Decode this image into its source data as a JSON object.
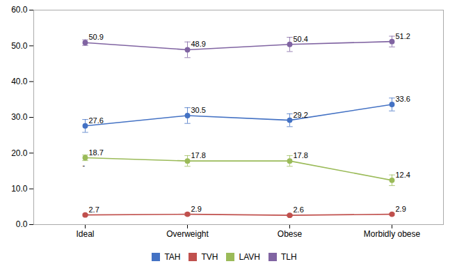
{
  "chart_data": {
    "type": "line",
    "categories": [
      "Ideal",
      "Overweight",
      "Obese",
      "Morbidly obese"
    ],
    "series": [
      {
        "name": "TAH",
        "color": "#4472C4",
        "values": [
          27.6,
          30.5,
          29.2,
          33.6
        ],
        "errors": [
          1.8,
          2.2,
          1.8,
          1.8
        ]
      },
      {
        "name": "TVH",
        "color": "#C0504D",
        "values": [
          2.7,
          2.9,
          2.6,
          2.9
        ],
        "errors": [
          0.25,
          0.35,
          0.25,
          0.25
        ]
      },
      {
        "name": "LAVH",
        "color": "#9BBB59",
        "values": [
          18.7,
          17.8,
          17.8,
          12.4
        ],
        "errors": [
          0.8,
          1.5,
          1.5,
          1.5
        ]
      },
      {
        "name": "TLH",
        "color": "#8064A2",
        "values": [
          50.9,
          48.9,
          50.4,
          51.2
        ],
        "errors": [
          0.8,
          2.2,
          2.0,
          1.5
        ]
      }
    ],
    "ylim": [
      0,
      60
    ],
    "yticks": [
      {
        "value": 0,
        "label": "0.0"
      },
      {
        "value": 10,
        "label": "10.0"
      },
      {
        "value": 20,
        "label": "20.0"
      },
      {
        "value": 30,
        "label": "30.0"
      },
      {
        "value": 40,
        "label": "40.0"
      },
      {
        "value": 50,
        "label": "50.0"
      },
      {
        "value": 60,
        "label": "60.0"
      }
    ],
    "grid": false,
    "legend": "bottom",
    "marker": "circle",
    "data_labels": true,
    "annotations": [
      {
        "text": "-",
        "category": "Ideal",
        "y": 15.8
      }
    ]
  }
}
